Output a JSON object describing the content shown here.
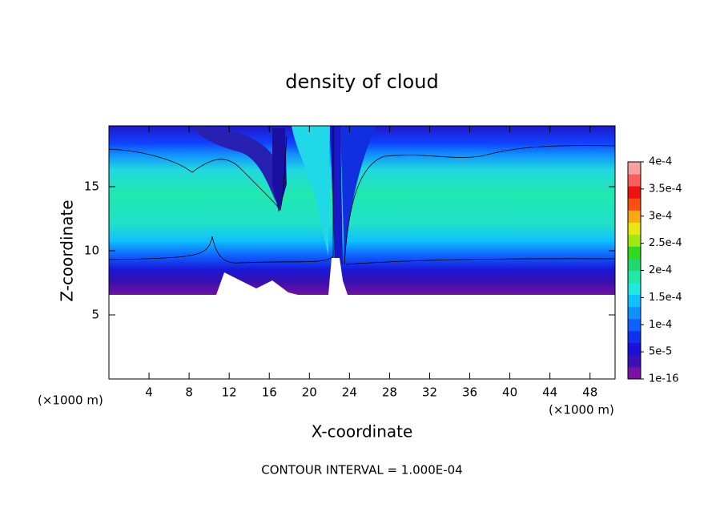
{
  "chart_data": {
    "type": "contour",
    "title": "density of cloud",
    "x_label": "X-coordinate",
    "y_label": "Z-coordinate",
    "x_unit": "(×1000 m)",
    "y_unit": "(×1000 m)",
    "note": "CONTOUR INTERVAL = 1.000E-04",
    "xlim": [
      0,
      50.5
    ],
    "xticks": [
      4,
      8,
      12,
      16,
      20,
      24,
      28,
      32,
      36,
      40,
      44,
      48
    ],
    "ylim": [
      0,
      19.75
    ],
    "yticks": [
      5,
      10,
      15
    ],
    "clim": [
      1e-16,
      0.0004
    ],
    "cticks": [
      {
        "value": 1e-16,
        "label": "1e-16"
      },
      {
        "value": 5e-05,
        "label": "5e-5"
      },
      {
        "value": 0.0001,
        "label": "1e-4"
      },
      {
        "value": 0.00015,
        "label": "1.5e-4"
      },
      {
        "value": 0.0002,
        "label": "2e-4"
      },
      {
        "value": 0.00025,
        "label": "2.5e-4"
      },
      {
        "value": 0.0003,
        "label": "3e-4"
      },
      {
        "value": 0.00035,
        "label": "3.5e-4"
      },
      {
        "value": 0.0004,
        "label": "4e-4"
      }
    ],
    "colors": [
      "#7a10a8",
      "#3c10b8",
      "#1a10d8",
      "#1030f0",
      "#1060ff",
      "#1090ff",
      "#10c0ff",
      "#20e8e0",
      "#20e8a8",
      "#20d870",
      "#30d820",
      "#a0e810",
      "#e8e810",
      "#f8a810",
      "#f85010",
      "#f01010",
      "#f86060",
      "#f8a0a0"
    ]
  }
}
